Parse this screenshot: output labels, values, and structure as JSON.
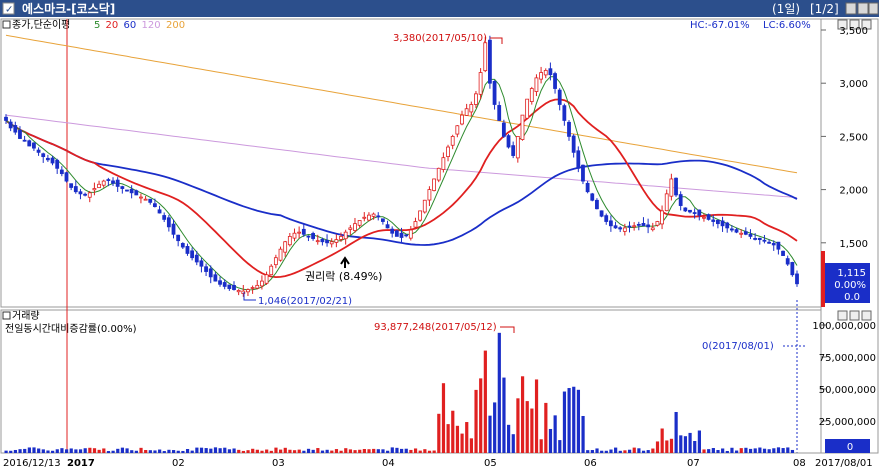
{
  "window": {
    "title": "에스마크-[코스닥]",
    "period": "(1일)",
    "page": "[1/2]",
    "buttons": [
      "□",
      "▫",
      "×"
    ],
    "title_bg": "#2c4f8c",
    "title_fg": "#ffffff"
  },
  "price_panel": {
    "label": "종가,단순이평",
    "ma_periods": [
      "5",
      "20",
      "60",
      "120",
      "200"
    ],
    "ma_colors": [
      "#2e8b2e",
      "#e02020",
      "#1a2ec8",
      "#cc99dd",
      "#e8a33a"
    ],
    "hc_label": "HC:-67.01%",
    "lc_label": "LC:6.60%",
    "yticks": [
      "3,500",
      "3,000",
      "2,500",
      "2,000",
      "1,500"
    ],
    "max_annotation": "3,380(2017/05/10)",
    "min_annotation": "1,046(2017/02/21)",
    "rights_annotation": "권리락 (8.49%)",
    "current_box": [
      "1,115",
      "0.00%",
      "0.0"
    ]
  },
  "volume_panel": {
    "label": "거래량",
    "sublabel": "전일동시간대비증감률(0.00%)",
    "yticks": [
      "100,000,000",
      "75,000,000",
      "50,000,000",
      "25,000,000"
    ],
    "max_annotation": "93,877,248(2017/05/12)",
    "current_annotation": "0(2017/08/01)",
    "current_box": "0"
  },
  "x_axis": {
    "labels": [
      "2016/12/13",
      "2017",
      "02",
      "03",
      "04",
      "05",
      "06",
      "07",
      "08",
      "2017/08/01"
    ]
  },
  "chart_data": {
    "type": "candlestick",
    "title": "에스마크-[코스닥]",
    "price_range": [
      1000,
      3500
    ],
    "volume_range": [
      0,
      100000000
    ],
    "grid": false,
    "months": [
      "2016/12/13",
      "2017",
      "02",
      "03",
      "04",
      "05",
      "06",
      "07",
      "08"
    ],
    "price_close": [
      2650,
      2580,
      2540,
      2480,
      2460,
      2410,
      2390,
      2350,
      2310,
      2280,
      2250,
      2200,
      2150,
      2080,
      2020,
      1980,
      1960,
      1950,
      1970,
      2010,
      2050,
      2080,
      2090,
      2060,
      2030,
      2010,
      1990,
      1970,
      1950,
      1930,
      1910,
      1880,
      1840,
      1780,
      1720,
      1650,
      1580,
      1520,
      1460,
      1400,
      1360,
      1320,
      1280,
      1230,
      1180,
      1140,
      1110,
      1090,
      1070,
      1060,
      1052,
      1046,
      1060,
      1080,
      1100,
      1140,
      1200,
      1280,
      1360,
      1440,
      1510,
      1560,
      1590,
      1600,
      1580,
      1560,
      1540,
      1520,
      1510,
      1500,
      1510,
      1530,
      1560,
      1600,
      1640,
      1680,
      1710,
      1740,
      1760,
      1770,
      1750,
      1700,
      1640,
      1590,
      1560,
      1550,
      1570,
      1620,
      1700,
      1800,
      1900,
      2000,
      2100,
      2200,
      2300,
      2400,
      2500,
      2600,
      2700,
      2760,
      2800,
      2900,
      3100,
      3380,
      3000,
      2800,
      2650,
      2500,
      2400,
      2320,
      2500,
      2700,
      2850,
      2950,
      3050,
      3100,
      3120,
      3080,
      2950,
      2800,
      2650,
      2500,
      2350,
      2200,
      2080,
      1980,
      1900,
      1820,
      1750,
      1700,
      1660,
      1640,
      1630,
      1640,
      1650,
      1660,
      1670,
      1660,
      1650,
      1640,
      1700,
      1800,
      1960,
      2100,
      1950,
      1850,
      1800,
      1790,
      1780,
      1760,
      1740,
      1720,
      1700,
      1680,
      1660,
      1640,
      1620,
      1600,
      1590,
      1580,
      1560,
      1540,
      1530,
      1520,
      1500,
      1480,
      1440,
      1380,
      1300,
      1200,
      1115
    ],
    "ma_values": {
      "5": "smoothed close",
      "20": "smoothed close",
      "60": "smoothed close",
      "120": "smoothed close",
      "200": "smoothed close"
    },
    "max": {
      "value": 3380,
      "date": "2017/05/10"
    },
    "min": {
      "value": 1046,
      "date": "2017/02/21"
    },
    "volume_max": {
      "value": 93877248,
      "date": "2017/05/12"
    },
    "last": {
      "price": 1115,
      "change": "0.00%",
      "volume": 0,
      "date": "2017/08/01"
    }
  }
}
